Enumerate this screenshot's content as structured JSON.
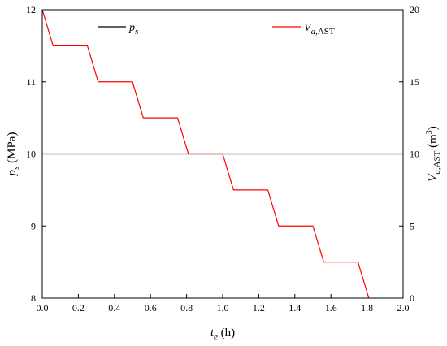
{
  "chart_data": {
    "type": "line",
    "x_axis": {
      "label": "t",
      "label_sub": "e",
      "label_unit": " (h)",
      "range": [
        0.0,
        2.0
      ],
      "ticks": [
        "0.0",
        "0.2",
        "0.4",
        "0.6",
        "0.8",
        "1.0",
        "1.2",
        "1.4",
        "1.6",
        "1.8",
        "2.0"
      ]
    },
    "y_left": {
      "label": "p",
      "label_sub": "s",
      "label_unit": " (MPa)",
      "range": [
        8,
        12
      ],
      "ticks": [
        "8",
        "9",
        "10",
        "11",
        "12"
      ]
    },
    "y_right": {
      "label": "V",
      "label_sub": "a,",
      "label_sub2": "AST",
      "label_unit": " (m",
      "label_sup": "3",
      "label_close": ")",
      "range": [
        0,
        20
      ],
      "ticks": [
        "0",
        "5",
        "10",
        "15",
        "20"
      ]
    },
    "legend": {
      "placement": "top",
      "items": [
        {
          "name": "p",
          "sub": "s",
          "color": "#000000"
        },
        {
          "name": "V",
          "sub": "a,",
          "sub2": "AST",
          "color": "#ff0000"
        }
      ]
    },
    "series": [
      {
        "axis": "left",
        "color": "#000000",
        "x": [
          0.0,
          2.0
        ],
        "y": [
          10,
          10
        ]
      },
      {
        "axis": "right",
        "color": "#ff0000",
        "x": [
          0.0,
          0.06,
          0.25,
          0.31,
          0.5,
          0.56,
          0.75,
          0.81,
          1.0,
          1.06,
          1.25,
          1.31,
          1.5,
          1.56,
          1.75,
          1.81
        ],
        "y": [
          20,
          17.5,
          17.5,
          15,
          15,
          12.5,
          12.5,
          10,
          10,
          7.5,
          7.5,
          5,
          5,
          2.5,
          2.5,
          0
        ]
      }
    ]
  }
}
